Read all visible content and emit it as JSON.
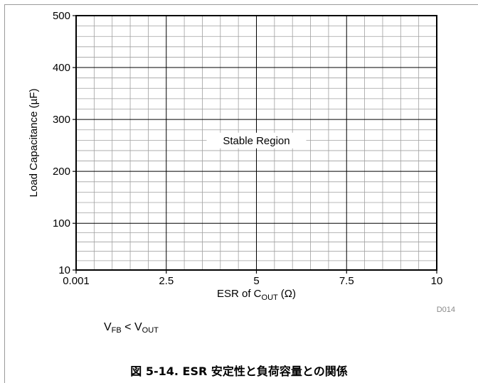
{
  "chart_data": {
    "type": "region",
    "xlabel": "ESR of C",
    "xlabel_sub": "OUT",
    "xlabel_unit": "(Ω)",
    "ylabel": "Load Capacitance (µF)",
    "x_ticks": [
      "0.001",
      "2.5",
      "5",
      "7.5",
      "10"
    ],
    "y_ticks": [
      "10",
      "100",
      "200",
      "300",
      "400",
      "500"
    ],
    "xlim": [
      0.001,
      10
    ],
    "ylim": [
      10,
      500
    ],
    "grid": true,
    "annotation": "Stable Region",
    "code": "D014"
  },
  "note": {
    "v1": "V",
    "v1_sub": "FB",
    "op": " < ",
    "v2": "V",
    "v2_sub": "OUT"
  },
  "caption": "図 5-14. ESR 安定性と負荷容量との関係"
}
